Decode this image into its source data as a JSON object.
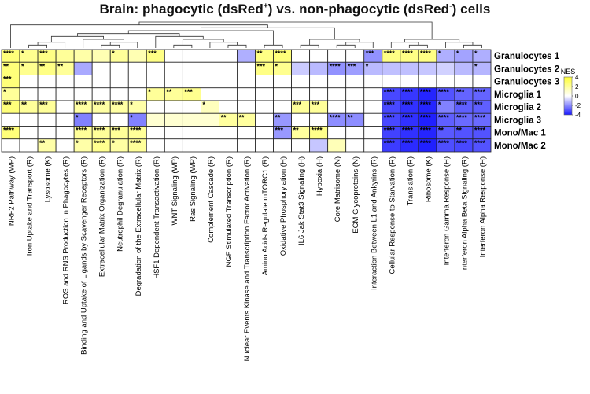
{
  "title": {
    "prefix": "Brain: phagocytic (dsRed",
    "sup1": "+",
    "middle": ") vs. non-phagocytic (dsRed",
    "sup2": "-",
    "suffix": ") cells"
  },
  "chart_data": {
    "type": "heatmap",
    "rows": [
      "Granulocytes 1",
      "Granulocytes 2",
      "Granulocytes 3",
      "Microglia 1",
      "Microglia 2",
      "Microglia 3",
      "Mono/Mac 1",
      "Mono/Mac 2"
    ],
    "columns": [
      "NRF2 Pathway (WP)",
      "Iron Uptake and Transport (R)",
      "Lysosome (K)",
      "ROS and RNS Production in Phagocytes (R)",
      "Binding and Uptake of Ligands by Scavenger Receptors (R)",
      "Extracellular Matrix Organization (R)",
      "Neutrophil Degranulation (R)",
      "Degradation of the Extracellular Matrix (R)",
      "HSF1 Dependent Transactivation (R)",
      "WNT Signaling (WP)",
      "Ras Signaling (WP)",
      "Complement Cascade (R)",
      "NGF Stimulated Transcription (R)",
      "Nuclear Events Kinase and Transcription Factor Activation (R)",
      "Amino Acids Regulate mTORC1 (R)",
      "Oxidative Phosphorylation (H)",
      "IL6 Jak Stat3 Signaling (H)",
      "Hypoxia (H)",
      "Core Matrisome (N)",
      "ECM Glycoproteins (N)",
      "Interaction Between L1 and Ankyrins (R)",
      "Cellular Response to Starvation (R)",
      "Translation (R)",
      "Ribosome (K)",
      "Interferon Gamma Response (H)",
      "Interferon Alpha Beta Signaling (R)",
      "Interferon Alpha Response (H)"
    ],
    "values": [
      [
        2.6,
        2.2,
        2.4,
        2.0,
        1.7,
        1.5,
        2.0,
        1.5,
        2.4,
        0,
        0,
        0,
        0,
        -1.4,
        2.4,
        2.6,
        0,
        0,
        0,
        0,
        -1.9,
        2.4,
        2.4,
        2.4,
        -1.4,
        -1.6,
        -1.4
      ],
      [
        2.6,
        2.2,
        2.4,
        2.0,
        -1.5,
        0,
        0,
        0,
        0,
        0,
        0,
        0,
        0,
        0,
        2.4,
        2.2,
        -0.9,
        -1.2,
        -1.9,
        -1.7,
        -1.2,
        -1.1,
        -1.1,
        -1.0,
        -0.8,
        -1.2,
        -1.3
      ],
      [
        2.6,
        0,
        0,
        0,
        0,
        0,
        0,
        0,
        0,
        0,
        0,
        0,
        0,
        0,
        0,
        0,
        0,
        0,
        0,
        0,
        0,
        0,
        0,
        0,
        0,
        0,
        0
      ],
      [
        2.0,
        0,
        0,
        0,
        0,
        0,
        0,
        0,
        2.0,
        2.0,
        2.2,
        0,
        0,
        0,
        0,
        0,
        0,
        0,
        0,
        0,
        0,
        -3.2,
        -3.5,
        -3.8,
        -3.0,
        -2.7,
        -2.7
      ],
      [
        2.6,
        2.0,
        2.0,
        0,
        1.8,
        1.8,
        1.8,
        1.7,
        0,
        0,
        0,
        1.3,
        0,
        0,
        0,
        0,
        2.0,
        2.0,
        0,
        0,
        0,
        -3.2,
        -3.6,
        -3.8,
        -2.2,
        -2.8,
        -2.8
      ],
      [
        0,
        0,
        0,
        0,
        -2.2,
        0,
        0,
        -2.2,
        0.9,
        0.9,
        0.9,
        0.9,
        1.9,
        1.9,
        0,
        -1.8,
        0,
        0,
        -2.0,
        -2.0,
        0,
        -3.2,
        -3.6,
        -3.9,
        -2.8,
        -2.6,
        -2.6
      ],
      [
        2.6,
        0,
        0,
        0,
        2.0,
        2.0,
        2.0,
        2.0,
        0,
        0,
        0,
        0,
        0,
        0,
        0,
        -1.8,
        1.9,
        2.3,
        0,
        0,
        0,
        -3.3,
        -3.6,
        -3.8,
        -2.9,
        -3.0,
        -3.0
      ],
      [
        0,
        0,
        1.7,
        0,
        1.7,
        2.2,
        1.8,
        2.0,
        0,
        0,
        0,
        0,
        0,
        0,
        0,
        0,
        0,
        -1.0,
        1.4,
        0,
        0,
        -3.4,
        -3.7,
        -3.9,
        -3.1,
        -3.2,
        -3.0
      ]
    ],
    "significance": [
      [
        "****",
        "*",
        "***",
        "",
        "",
        "",
        "*",
        "",
        "***",
        "",
        "",
        "",
        "",
        "",
        "**",
        "****",
        "",
        "",
        "",
        "",
        "***",
        "****",
        "****",
        "****",
        "*",
        "*",
        "*"
      ],
      [
        "**",
        "*",
        "**",
        "**",
        "",
        "",
        "",
        "",
        "",
        "",
        "",
        "",
        "",
        "",
        "***",
        "*",
        "",
        "",
        "****",
        "***",
        "*",
        "",
        "",
        "",
        "",
        "",
        "*"
      ],
      [
        "***",
        "",
        "",
        "",
        "",
        "",
        "",
        "",
        "",
        "",
        "",
        "",
        "",
        "",
        "",
        "",
        "",
        "",
        "",
        "",
        "",
        "",
        "",
        "",
        "",
        "",
        ""
      ],
      [
        "*",
        "",
        "",
        "",
        "",
        "",
        "",
        "",
        "*",
        "**",
        "***",
        "",
        "",
        "",
        "",
        "",
        "",
        "",
        "",
        "",
        "",
        "****",
        "****",
        "****",
        "****",
        "***",
        "****"
      ],
      [
        "***",
        "**",
        "***",
        "",
        "****",
        "****",
        "****",
        "*",
        "",
        "",
        "",
        "*",
        "",
        "",
        "",
        "",
        "***",
        "***",
        "",
        "",
        "",
        "****",
        "****",
        "****",
        "*",
        "****",
        "***"
      ],
      [
        "",
        "",
        "",
        "",
        "*",
        "",
        "",
        "*",
        "",
        "",
        "",
        "",
        "**",
        "**",
        "",
        "**",
        "",
        "",
        "****",
        "**",
        "",
        "****",
        "****",
        "****",
        "****",
        "****",
        "****"
      ],
      [
        "****",
        "",
        "",
        "",
        "****",
        "****",
        "***",
        "****",
        "",
        "",
        "",
        "",
        "",
        "",
        "",
        "***",
        "**",
        "****",
        "",
        "",
        "",
        "****",
        "****",
        "****",
        "**",
        "**",
        "****"
      ],
      [
        "",
        "",
        "**",
        "",
        "*",
        "****",
        "*",
        "****",
        "",
        "",
        "",
        "",
        "",
        "",
        "",
        "",
        "",
        "",
        "",
        "",
        "",
        "****",
        "****",
        "****",
        "****",
        "****",
        "****"
      ]
    ],
    "colorbar": {
      "title": "NES",
      "min": -4,
      "max": 4,
      "ticks": [
        "4",
        "2",
        "0",
        "-2",
        "-4"
      ],
      "colors": {
        "high": "#FFFF33",
        "mid": "#FFFFFF",
        "low": "#1A1AFF"
      }
    },
    "dendrogram_top": true
  }
}
